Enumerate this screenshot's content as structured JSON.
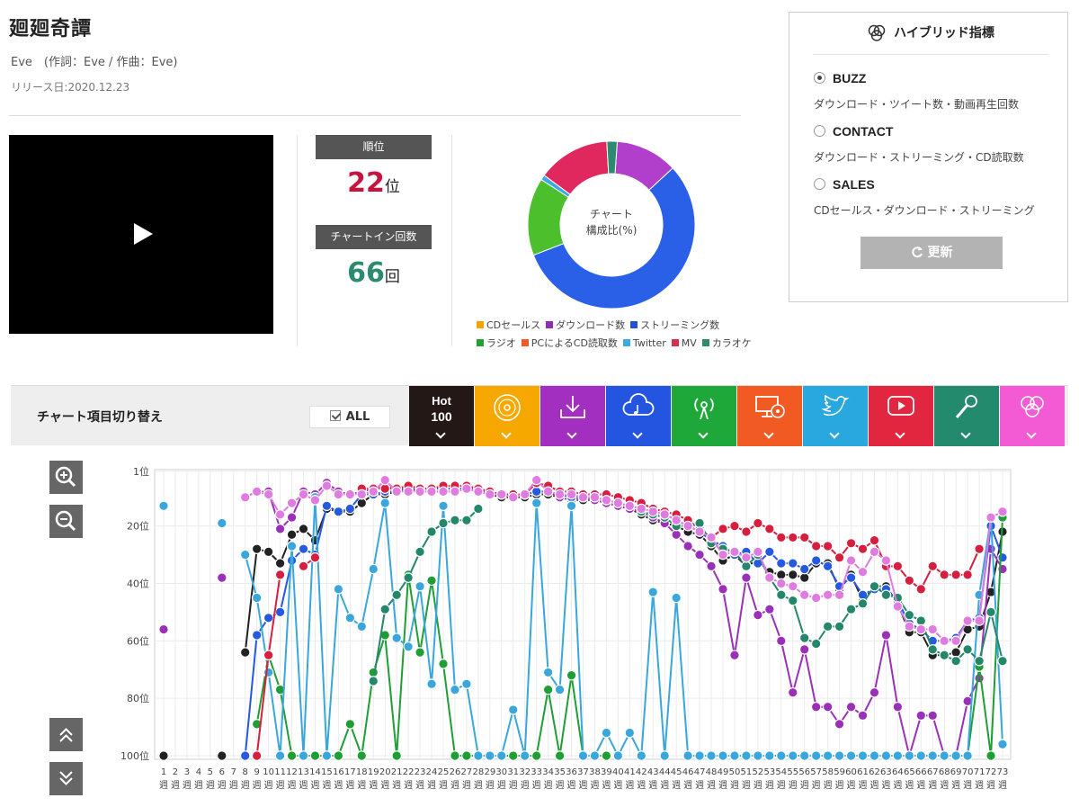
{
  "song": {
    "title": "廻廻奇譚",
    "credits": "Eve　(作詞：Eve / 作曲：Eve)",
    "release": "リリース日:2020.12.23"
  },
  "stats": {
    "rank_label": "順位",
    "rank_value": "22",
    "rank_unit": "位",
    "chartin_label": "チャートイン回数",
    "chartin_value": "66",
    "chartin_unit": "回"
  },
  "composition": {
    "center_line1": "チャート",
    "center_line2": "構成比(%)",
    "slices": [
      {
        "name": "ダウンロード数",
        "value": 12,
        "color": "#b13fcb"
      },
      {
        "name": "ストリーミング数",
        "value": 56,
        "color": "#2a5fe8"
      },
      {
        "name": "ラジオ",
        "value": 15,
        "color": "#4bbf2c"
      },
      {
        "name": "Twitter",
        "value": 1,
        "color": "#3ea8e0"
      },
      {
        "name": "MV",
        "value": 14,
        "color": "#e0285f"
      },
      {
        "name": "カラオケ",
        "value": 2,
        "color": "#2b8a6f"
      }
    ],
    "legend_row1": [
      {
        "label": "CDセールス",
        "color": "#f5a300"
      },
      {
        "label": "ダウンロード数",
        "color": "#8d2fb0"
      },
      {
        "label": "ストリーミング数",
        "color": "#2250d8"
      }
    ],
    "legend_row2": [
      {
        "label": "ラジオ",
        "color": "#22a033"
      },
      {
        "label": "PCによるCD読取数",
        "color": "#f05a28"
      },
      {
        "label": "Twitter",
        "color": "#3ea8e0"
      },
      {
        "label": "MV",
        "color": "#d9304a"
      },
      {
        "label": "カラオケ",
        "color": "#2b8a6f"
      }
    ]
  },
  "hybrid": {
    "title": "ハイブリッド指標",
    "options": [
      {
        "label": "BUZZ",
        "desc": "ダウンロード・ツイート数・動画再生回数",
        "checked": true
      },
      {
        "label": "CONTACT",
        "desc": "ダウンロード・ストリーミング・CD読取数",
        "checked": false
      },
      {
        "label": "SALES",
        "desc": "CDセールス・ダウンロード・ストリーミング",
        "checked": false
      }
    ],
    "update_label": "更新"
  },
  "switcher": {
    "label": "チャート項目切り替え",
    "all_label": "ALL",
    "hot_label_top": "Hot",
    "hot_label_bottom": "100",
    "categories": [
      {
        "name": "hot100",
        "color": "#231815",
        "icon": "hot100"
      },
      {
        "name": "cd-sales",
        "color": "#f7a800",
        "icon": "disc-icon"
      },
      {
        "name": "download",
        "color": "#a22fc0",
        "icon": "download-icon"
      },
      {
        "name": "streaming",
        "color": "#2355e0",
        "icon": "cloud-music-icon"
      },
      {
        "name": "radio",
        "color": "#1fa83a",
        "icon": "radio-icon"
      },
      {
        "name": "pc-cd-read",
        "color": "#f25a24",
        "icon": "pc-disc-icon"
      },
      {
        "name": "twitter",
        "color": "#29a8e0",
        "icon": "twitter-icon"
      },
      {
        "name": "mv",
        "color": "#e2263f",
        "icon": "youtube-icon"
      },
      {
        "name": "karaoke",
        "color": "#248a6e",
        "icon": "mic-icon"
      },
      {
        "name": "hybrid",
        "color": "#f25bd3",
        "icon": "venn-icon"
      }
    ]
  },
  "chart_data": {
    "type": "line",
    "ylim": [
      100,
      1
    ],
    "ytick_labels": [
      "1位",
      "20位",
      "40位",
      "60位",
      "80位",
      "100位"
    ],
    "ytick_values": [
      1,
      20,
      40,
      60,
      80,
      100
    ],
    "x_unit": "週",
    "x": [
      1,
      2,
      3,
      4,
      5,
      6,
      7,
      8,
      9,
      10,
      11,
      12,
      13,
      14,
      15,
      16,
      17,
      18,
      19,
      20,
      21,
      22,
      23,
      24,
      25,
      26,
      27,
      28,
      29,
      30,
      31,
      32,
      33,
      34,
      35,
      36,
      37,
      38,
      39,
      40,
      41,
      42,
      43,
      44,
      45,
      46,
      47,
      48,
      49,
      50,
      51,
      52,
      53,
      54,
      55,
      56,
      57,
      58,
      59,
      60,
      61,
      62,
      63,
      64,
      65,
      66,
      67,
      68,
      69,
      70,
      71,
      72,
      73
    ],
    "series": [
      {
        "name": "Hot 100",
        "color": "#222222",
        "values": [
          100,
          null,
          null,
          null,
          null,
          100,
          null,
          64,
          28,
          29,
          33,
          23,
          21,
          25,
          14,
          15,
          15,
          12,
          9,
          9,
          8,
          7,
          8,
          8,
          8,
          8,
          7,
          8,
          9,
          10,
          10,
          10,
          9,
          9,
          10,
          11,
          11,
          11,
          12,
          13,
          14,
          16,
          18,
          19,
          20,
          22,
          23,
          27,
          32,
          30,
          34,
          32,
          36,
          37,
          37,
          38,
          33,
          33,
          42,
          37,
          46,
          41,
          41,
          47,
          57,
          57,
          65,
          65,
          64,
          56,
          55,
          43,
          22
        ]
      },
      {
        "name": "ダウンロード数",
        "color": "#9b30b8",
        "values": [
          56,
          null,
          null,
          null,
          null,
          38,
          null,
          10,
          8,
          8,
          21,
          17,
          8,
          9,
          5,
          8,
          9,
          8,
          7,
          6,
          7,
          7,
          7,
          7,
          7,
          7,
          7,
          7,
          8,
          9,
          9,
          9,
          8,
          8,
          10,
          11,
          10,
          11,
          12,
          13,
          14,
          15,
          17,
          19,
          23,
          27,
          30,
          34,
          42,
          65,
          38,
          51,
          49,
          60,
          78,
          63,
          83,
          83,
          89,
          83,
          86,
          78,
          58,
          83,
          100,
          86,
          86,
          100,
          100,
          81,
          73,
          28,
          35
        ]
      },
      {
        "name": "ストリーミング数",
        "color": "#2559e0",
        "values": [
          null,
          null,
          null,
          null,
          null,
          null,
          null,
          100,
          58,
          52,
          50,
          32,
          28,
          30,
          13,
          15,
          14,
          9,
          9,
          8,
          8,
          7,
          7,
          7,
          7,
          7,
          7,
          8,
          8,
          9,
          9,
          9,
          8,
          8,
          9,
          10,
          10,
          10,
          11,
          12,
          13,
          14,
          15,
          16,
          18,
          20,
          22,
          25,
          27,
          30,
          29,
          33,
          29,
          33,
          33,
          35,
          32,
          34,
          41,
          38,
          44,
          42,
          42,
          46,
          54,
          56,
          60,
          60,
          59,
          53,
          52,
          20,
          31
        ]
      },
      {
        "name": "ラジオ",
        "color": "#1e9e34",
        "values": [
          null,
          null,
          null,
          null,
          null,
          null,
          null,
          null,
          89,
          65,
          77,
          100,
          100,
          100,
          100,
          100,
          89,
          100,
          71,
          58,
          100,
          37,
          64,
          39,
          68,
          100,
          100,
          100,
          100,
          100,
          100,
          100,
          100,
          77,
          100,
          72,
          100,
          100,
          100,
          null,
          null,
          null,
          null,
          100,
          null,
          null,
          null,
          null,
          null,
          null,
          null,
          null,
          null,
          null,
          null,
          null,
          null,
          null,
          null,
          null,
          null,
          null,
          null,
          null,
          null,
          null,
          null,
          null,
          null,
          100,
          69,
          100,
          17
        ]
      },
      {
        "name": "Twitter",
        "color": "#3aa7dc",
        "values": [
          13,
          null,
          null,
          null,
          null,
          19,
          null,
          30,
          45,
          71,
          100,
          27,
          100,
          10,
          100,
          42,
          52,
          55,
          35,
          12,
          59,
          62,
          41,
          75,
          13,
          77,
          75,
          100,
          100,
          100,
          84,
          100,
          12,
          71,
          77,
          13,
          100,
          100,
          92,
          100,
          92,
          100,
          43,
          100,
          45,
          100,
          100,
          100,
          100,
          100,
          100,
          100,
          100,
          100,
          100,
          100,
          100,
          100,
          100,
          100,
          100,
          100,
          100,
          100,
          100,
          100,
          100,
          100,
          100,
          100,
          44,
          17,
          96
        ]
      },
      {
        "name": "MV",
        "color": "#d61f3f",
        "values": [
          null,
          null,
          null,
          null,
          null,
          null,
          null,
          null,
          100,
          65,
          37,
          null,
          34,
          31,
          null,
          null,
          null,
          7,
          7,
          7,
          7,
          6,
          7,
          7,
          6,
          6,
          6,
          7,
          8,
          9,
          9,
          9,
          5,
          6,
          8,
          8,
          9,
          9,
          9,
          10,
          11,
          12,
          14,
          15,
          16,
          18,
          21,
          24,
          21,
          20,
          22,
          19,
          21,
          24,
          24,
          24,
          27,
          27,
          31,
          26,
          28,
          25,
          34,
          34,
          39,
          42,
          34,
          37,
          37,
          37,
          28,
          null,
          15
        ]
      },
      {
        "name": "カラオケ",
        "color": "#25876a",
        "values": [
          null,
          null,
          null,
          null,
          null,
          null,
          null,
          null,
          null,
          null,
          null,
          null,
          null,
          null,
          null,
          null,
          null,
          null,
          74,
          49,
          44,
          38,
          29,
          22,
          19,
          18,
          18,
          14,
          null,
          null,
          null,
          null,
          null,
          null,
          null,
          null,
          null,
          null,
          null,
          null,
          null,
          15,
          16,
          17,
          20,
          20,
          19,
          26,
          28,
          29,
          34,
          30,
          38,
          44,
          46,
          59,
          61,
          55,
          55,
          49,
          47,
          41,
          44,
          45,
          51,
          53,
          63,
          65,
          67,
          63,
          67,
          50,
          67
        ]
      },
      {
        "name": "ハイブリッド",
        "color": "#e07be0",
        "values": [
          null,
          null,
          null,
          null,
          null,
          null,
          null,
          10,
          8,
          9,
          16,
          12,
          9,
          11,
          6,
          9,
          9,
          9,
          8,
          4,
          8,
          8,
          8,
          8,
          8,
          8,
          7,
          8,
          9,
          9,
          10,
          9,
          4,
          8,
          9,
          9,
          10,
          10,
          11,
          12,
          13,
          14,
          15,
          16,
          18,
          20,
          22,
          24,
          30,
          29,
          31,
          29,
          38,
          40,
          41,
          44,
          45,
          44,
          44,
          32,
          36,
          29,
          32,
          48,
          55,
          56,
          56,
          60,
          60,
          53,
          53,
          17,
          15
        ]
      }
    ]
  }
}
